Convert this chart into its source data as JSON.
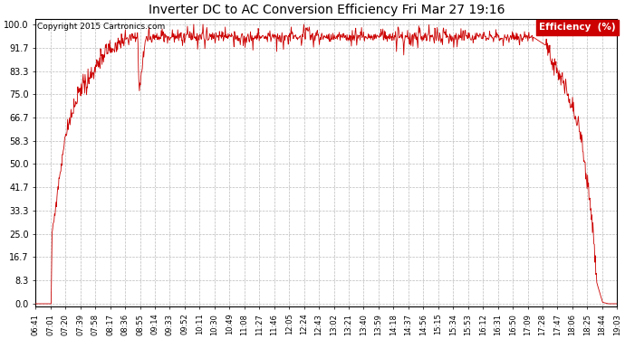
{
  "title": "Inverter DC to AC Conversion Efficiency Fri Mar 27 19:16",
  "copyright": "Copyright 2015 Cartronics.com",
  "legend_label": "Efficiency  (%)",
  "legend_bg": "#cc0000",
  "legend_text_color": "#ffffff",
  "line_color": "#cc0000",
  "bg_color": "#ffffff",
  "plot_bg": "#ffffff",
  "grid_color": "#bbbbbb",
  "yticks": [
    0.0,
    8.3,
    16.7,
    25.0,
    33.3,
    41.7,
    50.0,
    58.3,
    66.7,
    75.0,
    83.3,
    91.7,
    100.0
  ],
  "ylim": [
    0.0,
    100.0
  ],
  "xtick_labels": [
    "06:41",
    "07:01",
    "07:20",
    "07:39",
    "07:58",
    "08:17",
    "08:36",
    "08:55",
    "09:14",
    "09:33",
    "09:52",
    "10:11",
    "10:30",
    "10:49",
    "11:08",
    "11:27",
    "11:46",
    "12:05",
    "12:24",
    "12:43",
    "13:02",
    "13:21",
    "13:40",
    "13:59",
    "14:18",
    "14:37",
    "14:56",
    "15:15",
    "15:34",
    "15:53",
    "16:12",
    "16:31",
    "16:50",
    "17:09",
    "17:28",
    "17:47",
    "18:06",
    "18:25",
    "18:44",
    "19:03"
  ]
}
